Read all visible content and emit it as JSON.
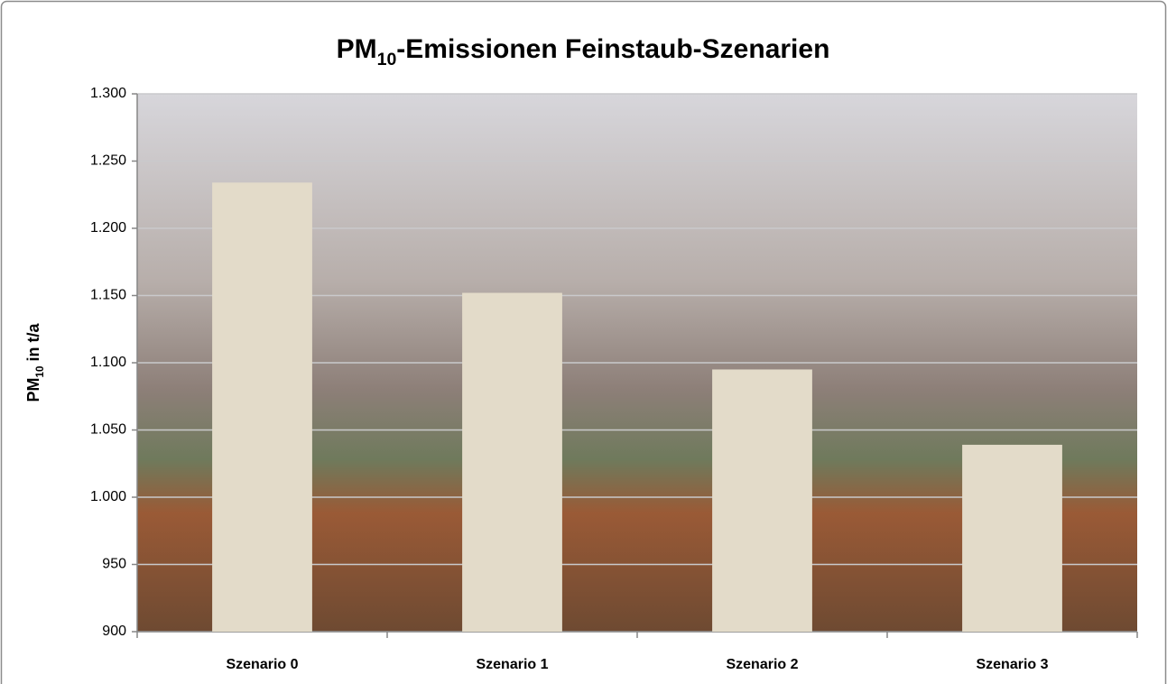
{
  "chart_data": {
    "type": "bar",
    "title": "PM10-Emissionen Feinstaub-Szenarien",
    "y_label": "PM10 in t/a",
    "categories": [
      "Szenario 0",
      "Szenario 1",
      "Szenario 2",
      "Szenario 3"
    ],
    "values": [
      1234,
      1152,
      1095,
      1039
    ],
    "color": "#e3dbc9",
    "ylim": [
      900,
      1300
    ],
    "yticks": [
      900,
      950,
      {
        "value": 1000,
        "label": "1.000"
      },
      {
        "value": 1050,
        "label": "1.050"
      },
      {
        "value": 1100,
        "label": "1.100"
      },
      {
        "value": 1150,
        "label": "1.150"
      },
      {
        "value": 1200,
        "label": "1.200"
      },
      {
        "value": 1250,
        "label": "1.250"
      },
      {
        "value": 1300,
        "label": "1.300"
      }
    ],
    "grid": true
  }
}
